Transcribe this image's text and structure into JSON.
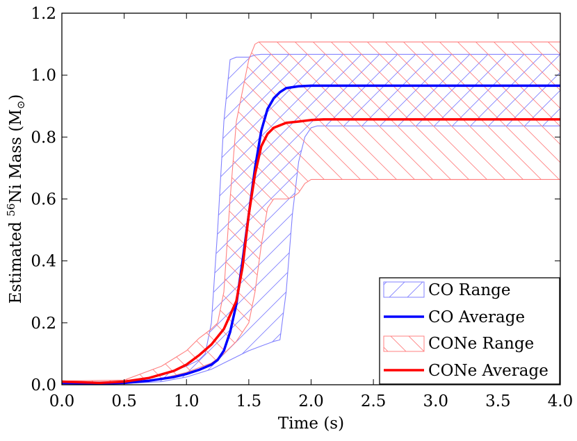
{
  "chart_data": {
    "type": "line",
    "title": "",
    "xlabel": "Time (s)",
    "ylabel": {
      "prefix": "Estimated ",
      "superscript": "56",
      "middle": "Ni Mass (M",
      "subscript": "⊙",
      "suffix": ")"
    },
    "xlim": [
      0.0,
      4.0
    ],
    "ylim": [
      0.0,
      1.2
    ],
    "xticks": [
      0.0,
      0.5,
      1.0,
      1.5,
      2.0,
      2.5,
      3.0,
      3.5,
      4.0
    ],
    "xtick_labels": [
      "0.0",
      "0.5",
      "1.0",
      "1.5",
      "2.0",
      "2.5",
      "3.0",
      "3.5",
      "4.0"
    ],
    "yticks": [
      0.0,
      0.2,
      0.4,
      0.6,
      0.8,
      1.0,
      1.2
    ],
    "ytick_labels": [
      "0.0",
      "0.2",
      "0.4",
      "0.6",
      "0.8",
      "1.0",
      "1.2"
    ],
    "grid": false,
    "legend_position": "bottom-right",
    "colors": {
      "co": "#0000ff",
      "cone": "#ff0000",
      "co_fill_edge": "#8080ff",
      "cone_fill_edge": "#ff8080"
    },
    "series": [
      {
        "name": "CO Range",
        "kind": "range",
        "color": "#0000ff",
        "hatch": "/",
        "upper": [
          [
            0.0,
            0.008
          ],
          [
            0.5,
            0.01
          ],
          [
            0.8,
            0.03
          ],
          [
            1.0,
            0.06
          ],
          [
            1.1,
            0.08
          ],
          [
            1.15,
            0.1
          ],
          [
            1.2,
            0.2
          ],
          [
            1.25,
            0.5
          ],
          [
            1.3,
            0.85
          ],
          [
            1.35,
            1.05
          ],
          [
            1.4,
            1.058
          ],
          [
            1.5,
            1.058
          ],
          [
            1.55,
            1.065
          ],
          [
            1.6,
            1.067
          ],
          [
            4.0,
            1.067
          ]
        ],
        "lower": [
          [
            0.0,
            0.002
          ],
          [
            0.5,
            0.004
          ],
          [
            0.8,
            0.01
          ],
          [
            1.0,
            0.025
          ],
          [
            1.2,
            0.05
          ],
          [
            1.3,
            0.07
          ],
          [
            1.4,
            0.09
          ],
          [
            1.5,
            0.11
          ],
          [
            1.6,
            0.125
          ],
          [
            1.7,
            0.14
          ],
          [
            1.75,
            0.145
          ],
          [
            1.8,
            0.3
          ],
          [
            1.85,
            0.55
          ],
          [
            1.9,
            0.72
          ],
          [
            1.95,
            0.8
          ],
          [
            2.0,
            0.83
          ],
          [
            2.05,
            0.836
          ],
          [
            4.0,
            0.836
          ]
        ]
      },
      {
        "name": "CO Average",
        "kind": "line",
        "color": "#0000ff",
        "points": [
          [
            0.0,
            0.006
          ],
          [
            0.3,
            0.004
          ],
          [
            0.5,
            0.006
          ],
          [
            0.7,
            0.013
          ],
          [
            0.9,
            0.025
          ],
          [
            1.0,
            0.035
          ],
          [
            1.1,
            0.048
          ],
          [
            1.2,
            0.065
          ],
          [
            1.25,
            0.08
          ],
          [
            1.3,
            0.11
          ],
          [
            1.35,
            0.17
          ],
          [
            1.4,
            0.26
          ],
          [
            1.45,
            0.4
          ],
          [
            1.5,
            0.55
          ],
          [
            1.55,
            0.7
          ],
          [
            1.6,
            0.82
          ],
          [
            1.65,
            0.89
          ],
          [
            1.7,
            0.925
          ],
          [
            1.75,
            0.945
          ],
          [
            1.8,
            0.958
          ],
          [
            1.9,
            0.964
          ],
          [
            2.0,
            0.966
          ],
          [
            4.0,
            0.966
          ]
        ]
      },
      {
        "name": "CONe Range",
        "kind": "range",
        "color": "#ff0000",
        "hatch": "\\",
        "upper": [
          [
            0.0,
            0.012
          ],
          [
            0.5,
            0.015
          ],
          [
            0.8,
            0.06
          ],
          [
            1.0,
            0.11
          ],
          [
            1.1,
            0.15
          ],
          [
            1.2,
            0.18
          ],
          [
            1.25,
            0.2
          ],
          [
            1.3,
            0.3
          ],
          [
            1.35,
            0.6
          ],
          [
            1.4,
            0.85
          ],
          [
            1.45,
            0.95
          ],
          [
            1.5,
            1.05
          ],
          [
            1.55,
            1.1
          ],
          [
            1.58,
            1.107
          ],
          [
            4.0,
            1.107
          ]
        ],
        "lower": [
          [
            0.0,
            0.003
          ],
          [
            0.5,
            0.006
          ],
          [
            0.8,
            0.02
          ],
          [
            1.0,
            0.04
          ],
          [
            1.2,
            0.07
          ],
          [
            1.3,
            0.1
          ],
          [
            1.4,
            0.14
          ],
          [
            1.5,
            0.2
          ],
          [
            1.55,
            0.3
          ],
          [
            1.6,
            0.45
          ],
          [
            1.65,
            0.57
          ],
          [
            1.7,
            0.6
          ],
          [
            1.8,
            0.6
          ],
          [
            1.85,
            0.605
          ],
          [
            1.9,
            0.62
          ],
          [
            1.95,
            0.65
          ],
          [
            2.0,
            0.663
          ],
          [
            4.0,
            0.663
          ]
        ]
      },
      {
        "name": "CONe Average",
        "kind": "line",
        "color": "#ff0000",
        "points": [
          [
            0.0,
            0.01
          ],
          [
            0.3,
            0.006
          ],
          [
            0.5,
            0.01
          ],
          [
            0.7,
            0.022
          ],
          [
            0.9,
            0.045
          ],
          [
            1.0,
            0.065
          ],
          [
            1.1,
            0.095
          ],
          [
            1.2,
            0.13
          ],
          [
            1.3,
            0.18
          ],
          [
            1.4,
            0.27
          ],
          [
            1.45,
            0.38
          ],
          [
            1.5,
            0.55
          ],
          [
            1.55,
            0.68
          ],
          [
            1.6,
            0.77
          ],
          [
            1.65,
            0.81
          ],
          [
            1.7,
            0.83
          ],
          [
            1.8,
            0.846
          ],
          [
            1.9,
            0.85
          ],
          [
            2.0,
            0.855
          ],
          [
            2.1,
            0.857
          ],
          [
            4.0,
            0.857
          ]
        ]
      }
    ]
  }
}
